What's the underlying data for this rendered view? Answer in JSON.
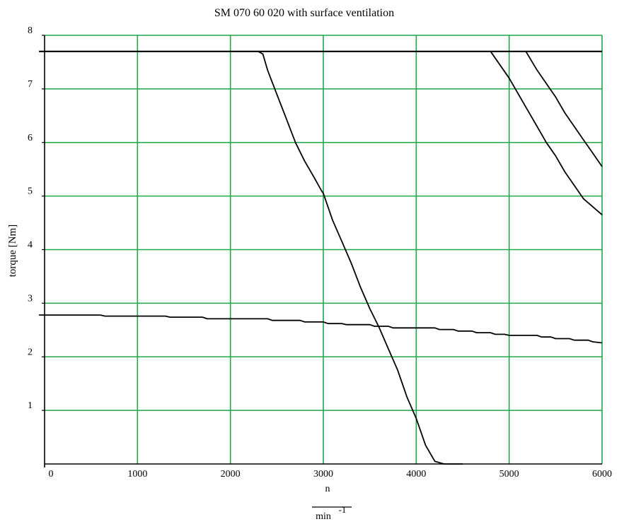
{
  "chart_data": {
    "type": "line",
    "title": "SM 070 60 020 with surface ventilation",
    "xlabel": "n",
    "xunit_denominator": "min",
    "xunit_exponent": "-1",
    "ylabel": "torque [Nm]",
    "xlim": [
      0,
      6000
    ],
    "ylim": [
      0,
      8
    ],
    "xticks": [
      0,
      1000,
      2000,
      3000,
      4000,
      5000,
      6000
    ],
    "yticks": [
      1,
      2,
      3,
      4,
      5,
      6,
      7,
      8
    ],
    "grid": true,
    "colors": {
      "grid": "#1ea84a",
      "line": "#000000",
      "axis": "#000000"
    },
    "series": [
      {
        "x": [
          -60,
          6000
        ],
        "y": [
          7.7,
          7.7
        ]
      },
      {
        "x": [
          2300,
          2350,
          2400,
          2500,
          2600,
          2700,
          2800,
          2900,
          2980,
          3000,
          3100,
          3200,
          3300,
          3400,
          3500,
          3600,
          3700,
          3800,
          3900,
          4000,
          4100,
          4200,
          4300,
          4400,
          4450,
          4500
        ],
        "y": [
          7.7,
          7.65,
          7.35,
          6.9,
          6.45,
          6.0,
          5.65,
          5.35,
          5.1,
          5.05,
          4.55,
          4.15,
          3.75,
          3.3,
          2.9,
          2.55,
          2.15,
          1.75,
          1.25,
          0.85,
          0.35,
          0.05,
          0.0,
          0.0,
          0.0,
          0.0
        ]
      },
      {
        "x": [
          4800,
          4900,
          5000,
          5100,
          5200,
          5300,
          5400,
          5500,
          5600,
          5700,
          5800,
          5900,
          6000
        ],
        "y": [
          7.7,
          7.45,
          7.2,
          6.9,
          6.6,
          6.3,
          6.0,
          5.75,
          5.45,
          5.2,
          4.95,
          4.8,
          4.65
        ]
      },
      {
        "x": [
          5180,
          5300,
          5400,
          5500,
          5600,
          5700,
          5800,
          5900,
          6000
        ],
        "y": [
          7.7,
          7.35,
          7.1,
          6.85,
          6.55,
          6.3,
          6.05,
          5.8,
          5.55
        ]
      },
      {
        "x": [
          -60,
          600,
          650,
          1300,
          1350,
          1700,
          1750,
          2400,
          2450,
          2750,
          2800,
          3000,
          3050,
          3200,
          3250,
          3500,
          3550,
          3700,
          3750,
          4200,
          4250,
          4400,
          4450,
          4600,
          4650,
          4800,
          4850,
          4950,
          5000,
          5300,
          5350,
          5450,
          5500,
          5650,
          5700,
          5850,
          5900,
          6000
        ],
        "y": [
          2.78,
          2.78,
          2.76,
          2.76,
          2.74,
          2.74,
          2.71,
          2.71,
          2.68,
          2.68,
          2.65,
          2.65,
          2.62,
          2.62,
          2.6,
          2.6,
          2.57,
          2.57,
          2.54,
          2.54,
          2.51,
          2.51,
          2.48,
          2.48,
          2.45,
          2.45,
          2.42,
          2.42,
          2.4,
          2.4,
          2.37,
          2.37,
          2.34,
          2.34,
          2.31,
          2.31,
          2.28,
          2.26
        ]
      }
    ]
  }
}
